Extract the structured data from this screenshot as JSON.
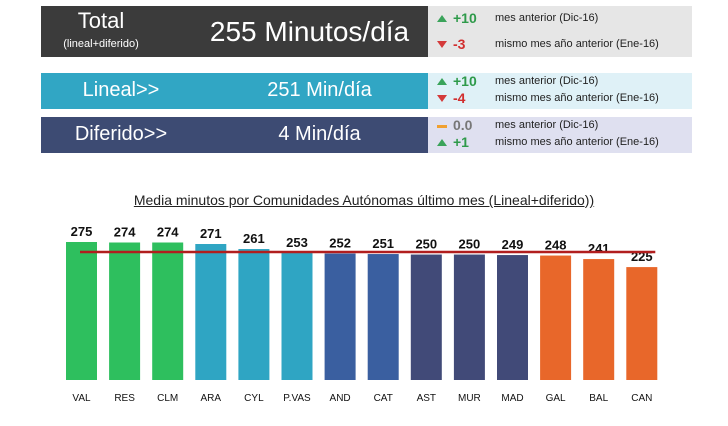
{
  "summary": {
    "total": {
      "label": "Total",
      "sublabel": "(lineal+diferido)",
      "value": "255 Minutos/día",
      "comparisons": [
        {
          "delta": "+10",
          "direction": "up",
          "desc": "mes anterior (Dic-16)"
        },
        {
          "delta": "-3",
          "direction": "down",
          "desc": "mismo mes año anterior (Ene-16)"
        }
      ]
    },
    "lineal": {
      "label": "Lineal>>",
      "value": "251 Min/día",
      "comparisons": [
        {
          "delta": "+10",
          "direction": "up",
          "desc": "mes anterior (Dic-16)"
        },
        {
          "delta": "-4",
          "direction": "down",
          "desc": "mismo mes año anterior (Ene-16)"
        }
      ]
    },
    "diferido": {
      "label": "Diferido>>",
      "value": "4 Min/día",
      "comparisons": [
        {
          "delta": "0.0",
          "direction": "flat",
          "desc": "mes anterior (Dic-16)"
        },
        {
          "delta": "+1",
          "direction": "up",
          "desc": "mismo mes año anterior (Ene-16)"
        }
      ]
    }
  },
  "colors": {
    "total": "#3b3b3b",
    "lineal": "#31a6c4",
    "diferido": "#3d4b73",
    "avg_line": "#b11e1e"
  },
  "chart_data": {
    "type": "bar",
    "title": "Media minutos por Comunidades Autónomas último mes (Lineal+diferido))",
    "categories": [
      "VAL",
      "RES",
      "CLM",
      "ARA",
      "CYL",
      "P.VAS",
      "AND",
      "CAT",
      "AST",
      "MUR",
      "MAD",
      "GAL",
      "BAL",
      "CAN"
    ],
    "values": [
      275,
      274,
      274,
      271,
      261,
      253,
      252,
      251,
      250,
      250,
      249,
      248,
      241,
      225
    ],
    "colors": [
      "#2ebf5e",
      "#2ebf5e",
      "#2ebf5e",
      "#2fa5c3",
      "#2fa5c3",
      "#2fa5c3",
      "#3a5fa0",
      "#3a5fa0",
      "#414a78",
      "#414a78",
      "#414a78",
      "#e8672a",
      "#e8672a",
      "#e8672a"
    ],
    "reference_line": 255,
    "ylim": [
      0,
      275
    ],
    "grid": false,
    "legend": false
  }
}
